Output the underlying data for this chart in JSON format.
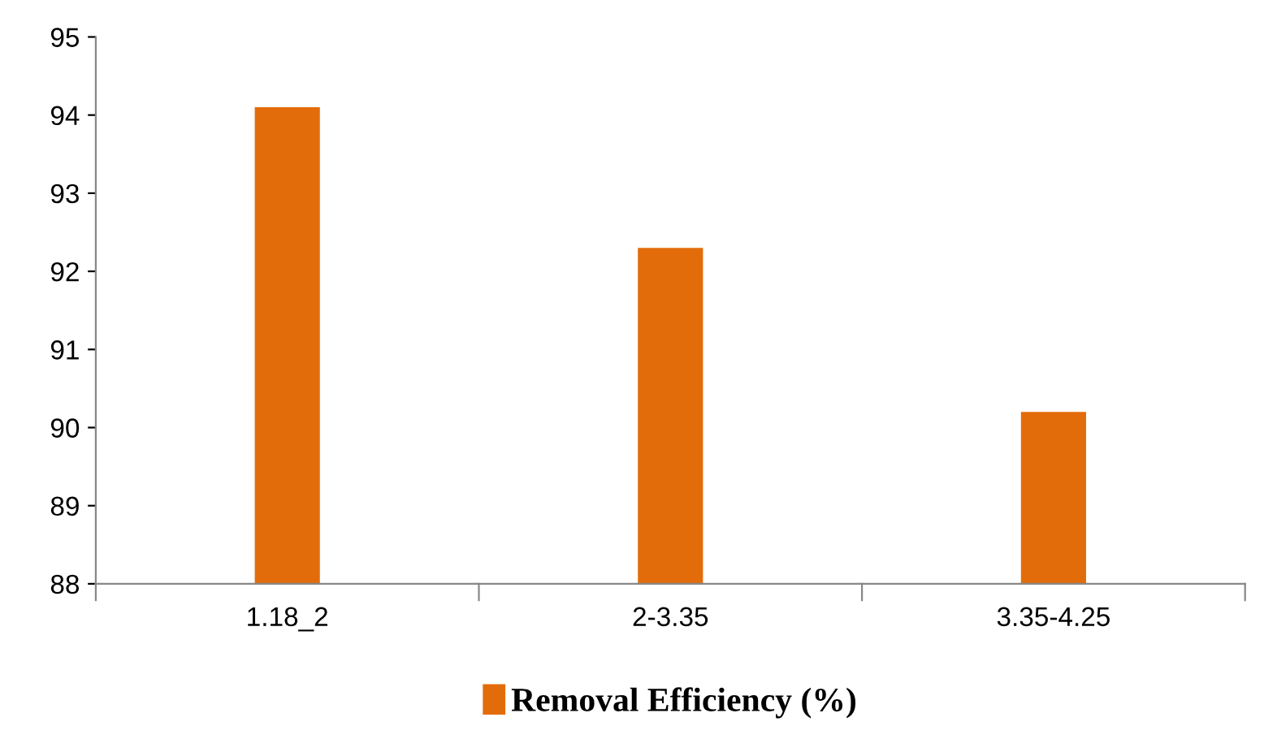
{
  "chart_data": {
    "type": "bar",
    "categories": [
      "1.18_2",
      "2-3.35",
      "3.35-4.25"
    ],
    "series": [
      {
        "name": "Removal Efficiency (%)",
        "color": "#e36c0a",
        "values": [
          94.1,
          92.3,
          90.2
        ]
      }
    ],
    "ylim": [
      88,
      95
    ],
    "yticks": [
      88,
      89,
      90,
      91,
      92,
      93,
      94,
      95
    ],
    "grid": false,
    "legend": "bottom"
  }
}
